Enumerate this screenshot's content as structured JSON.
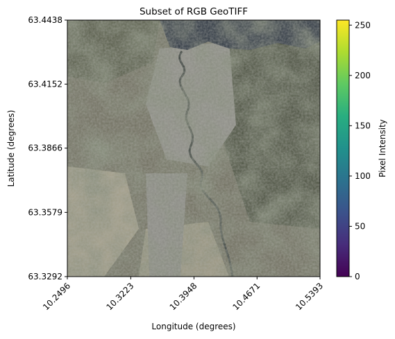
{
  "chart_data": {
    "type": "heatmap",
    "title": "Subset of RGB GeoTIFF",
    "xlabel": "Longitude (degrees)",
    "ylabel": "Latitude (degrees)",
    "xlim": [
      10.2496,
      10.5393
    ],
    "ylim": [
      63.3292,
      63.4438
    ],
    "x_ticks": [
      "10.2496",
      "10.3223",
      "10.3948",
      "10.4671",
      "10.5393"
    ],
    "y_ticks": [
      "63.3292",
      "63.3579",
      "63.3866",
      "63.4152",
      "63.4438"
    ],
    "colorbar": {
      "label": "Pixel Intensity",
      "range": [
        0,
        255
      ],
      "ticks": [
        "0",
        "50",
        "100",
        "150",
        "200",
        "250"
      ],
      "colormap": "viridis"
    }
  }
}
